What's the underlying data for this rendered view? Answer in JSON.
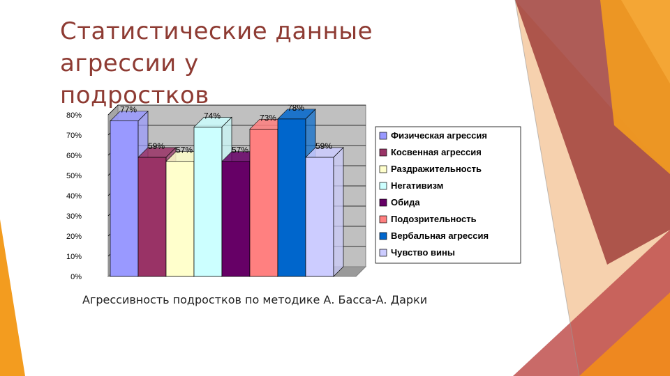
{
  "slide": {
    "title_line1": "Статистические данные агрессии у",
    "title_line2": "подростков",
    "caption": "Агрессивность подростков по методике А. Басса-А. Дарки"
  },
  "colors": {
    "title": "#8e3b33",
    "deco_red": "#a0403a",
    "deco_orange": "#f39c1f",
    "deco_peach": "#f4c9a0"
  },
  "chart_data": {
    "type": "bar",
    "grid": true,
    "legend_position": "right",
    "ylim": [
      0,
      80
    ],
    "yticks": [
      "0%",
      "10%",
      "20%",
      "30%",
      "40%",
      "50%",
      "60%",
      "70%",
      "80%"
    ],
    "series": [
      {
        "name": "Физическая агрессия",
        "value": 77,
        "label": "77%",
        "color": "#9999ff"
      },
      {
        "name": "Косвенная агрессия",
        "value": 59,
        "label": "59%",
        "color": "#993366"
      },
      {
        "name": "Раздражительность",
        "value": 57,
        "label": "57%",
        "color": "#ffffcc"
      },
      {
        "name": "Негативизм",
        "value": 74,
        "label": "74%",
        "color": "#ccffff"
      },
      {
        "name": "Обида",
        "value": 57,
        "label": "57%",
        "color": "#660066"
      },
      {
        "name": "Подозрительность",
        "value": 73,
        "label": "73%",
        "color": "#ff8080"
      },
      {
        "name": "Вербальная агрессия",
        "value": 78,
        "label": "78%",
        "color": "#0066cc"
      },
      {
        "name": "Чувство вины",
        "value": 59,
        "label": "59%",
        "color": "#ccccff"
      }
    ]
  }
}
